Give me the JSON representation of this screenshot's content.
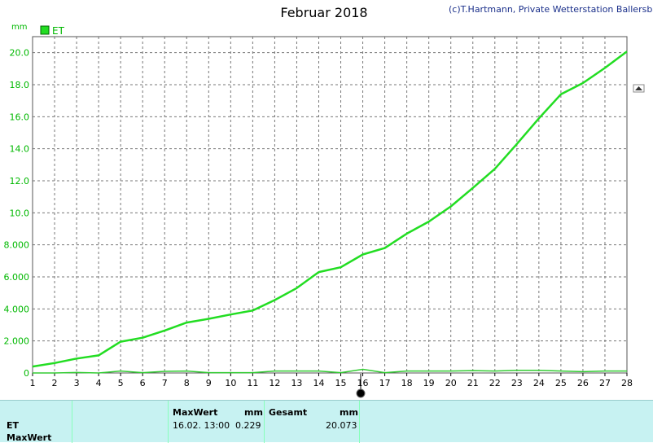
{
  "chart_data": {
    "type": "line",
    "title": "Februar 2018",
    "credit": "(c)T.Hartmann, Private Wetterstation Ballersbach",
    "ylabel": "mm",
    "legend": [
      "ET"
    ],
    "legend_position": "top-left",
    "x": [
      1,
      2,
      3,
      4,
      5,
      6,
      7,
      8,
      9,
      10,
      11,
      12,
      13,
      14,
      15,
      16,
      17,
      18,
      19,
      20,
      21,
      22,
      23,
      24,
      25,
      26,
      27,
      28
    ],
    "xlim": [
      1,
      28
    ],
    "ylim": [
      0,
      21
    ],
    "yticks": [
      0,
      2,
      4,
      6,
      8,
      10,
      12,
      14,
      16,
      18,
      20
    ],
    "ytick_labels": [
      "0",
      "2.000",
      "4.000",
      "6.000",
      "8.000",
      "10.0",
      "12.0",
      "14.0",
      "16.0",
      "18.0",
      "20.0"
    ],
    "grid": true,
    "series": [
      {
        "name": "ET",
        "role": "cumulative",
        "color": "#22dd22",
        "values": [
          0.4,
          0.62,
          0.9,
          1.1,
          1.95,
          2.2,
          2.65,
          3.15,
          3.38,
          3.65,
          3.9,
          4.55,
          5.3,
          6.3,
          6.6,
          7.4,
          7.8,
          8.7,
          9.45,
          10.4,
          11.55,
          12.75,
          14.3,
          15.9,
          17.4,
          18.1,
          19.05,
          20.073
        ]
      },
      {
        "name": "ET",
        "role": "daily",
        "color": "#33cc33",
        "values": [
          0.0,
          0.0,
          0.03,
          0.0,
          0.12,
          0.02,
          0.1,
          0.12,
          0.02,
          0.02,
          0.02,
          0.12,
          0.12,
          0.12,
          0.02,
          0.229,
          0.02,
          0.12,
          0.12,
          0.12,
          0.15,
          0.12,
          0.17,
          0.17,
          0.12,
          0.08,
          0.12,
          0.12
        ]
      }
    ]
  },
  "panel": {
    "row1": "ET",
    "row2": "MaxWert",
    "max_header": "MaxWert",
    "max_unit": "mm",
    "max_time": "16.02.  13:00",
    "max_value": "0.229",
    "total_header": "Gesamt",
    "total_unit": "mm",
    "total_value": "20.073"
  }
}
